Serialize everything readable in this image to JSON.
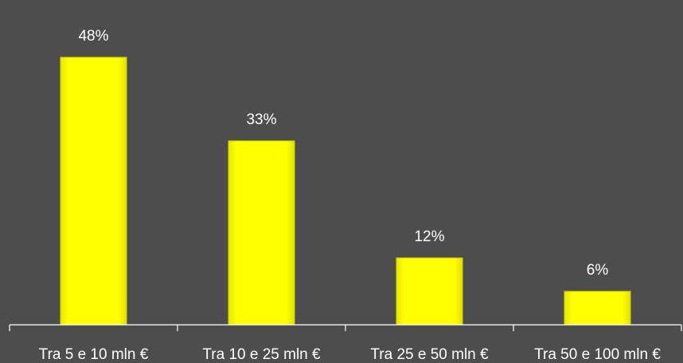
{
  "chart_data": {
    "type": "bar",
    "categories": [
      "Tra 5 e 10 mln €",
      "Tra 10 e 25 mln €",
      "Tra 25 e 50 mln €",
      "Tra 50 e 100 mln €"
    ],
    "values": [
      48,
      33,
      12,
      6
    ],
    "data_labels": [
      "48%",
      "33%",
      "12%",
      "6%"
    ],
    "ylim": [
      0,
      55
    ],
    "grid": false,
    "legend": "none",
    "colors": {
      "background": "#4d4d4d",
      "bar": "#ffff00",
      "bar_edge": "#d4d400",
      "axis": "#ffffff",
      "text": "#ffffff"
    }
  }
}
